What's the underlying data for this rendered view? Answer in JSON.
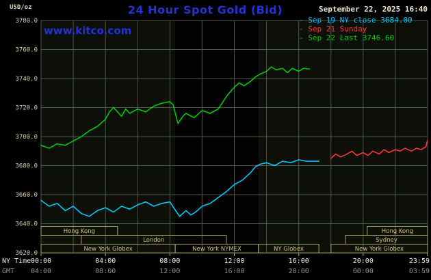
{
  "header": {
    "units_label": "USD/oz",
    "title": "24 Hour Spot Gold (Bid)",
    "datetime": "September 22, 2025 16:40",
    "watermark": "www.kitco.com",
    "legend_marker": "-",
    "legend": [
      {
        "label": "Sep 19 NY close 3684.00",
        "color": "#00c8ff"
      },
      {
        "label": "Sep 21 Sunday",
        "color": "#ff3333"
      },
      {
        "label": "Sep 22 Last 3746.60",
        "color": "#00cc00"
      }
    ]
  },
  "colors": {
    "title": "#2433d6",
    "watermark": "#2233dd",
    "datetime_text": "#e6e2cc",
    "plot_bg": "#0d0f09",
    "band": "#020202",
    "grid": "#4e5849",
    "axis_text": "#d8d2ac",
    "session": "#b3a45c",
    "session_text": "#cfc183",
    "ny_time_text": "#e8e8e8",
    "gmt_text": "#909090"
  },
  "x_axis": {
    "tick_hours": [
      0,
      4,
      8,
      12,
      16,
      20,
      23.983
    ],
    "rows": [
      {
        "name": "NY Time",
        "labels": [
          "00:00",
          "04:00",
          "08:00",
          "12:00",
          "16:00",
          "20:00",
          "23:59"
        ],
        "color": "#e8e8e8"
      },
      {
        "name": "GMT",
        "labels": [
          "04:00",
          "08:00",
          "12:00",
          "16:00",
          "20:00",
          "00:00",
          "03:59"
        ],
        "color": "#909090"
      }
    ]
  },
  "sessions": {
    "rows": [
      [
        {
          "label": "Hong Kong",
          "start": 0,
          "end": 4.75
        },
        {
          "label": "Hong Kong",
          "start": 20.25,
          "end": 24
        }
      ],
      [
        {
          "label": "London",
          "start": 2.5,
          "end": 11.5
        },
        {
          "label": "Sydney",
          "start": 18.9,
          "end": 24
        }
      ],
      [
        {
          "label": "New York Globex",
          "start": 0,
          "end": 8.33
        },
        {
          "label": "New York NYMEX",
          "start": 8.33,
          "end": 13.5
        },
        {
          "label": "NY Globex",
          "start": 13.5,
          "end": 17.25
        },
        {
          "label": "New York Globex",
          "start": 18,
          "end": 24
        }
      ]
    ]
  },
  "chart_data": {
    "type": "line",
    "title": "24 Hour Spot Gold (Bid)",
    "xlabel": "NY Time (hours)",
    "ylabel": "USD/oz",
    "xlim": [
      0,
      24
    ],
    "ylim": [
      3620,
      3780
    ],
    "grid": true,
    "legend_position": "top-right",
    "y_ticks": [
      3780,
      3760,
      3740,
      3720,
      3700,
      3680,
      3660,
      3640,
      3620
    ],
    "y_tick_labels": [
      "3780.0",
      "3760.0",
      "3740.0",
      "3720.0",
      "3700.0",
      "3680.0",
      "3660.0",
      "3640.0",
      "3620.0"
    ],
    "nymex_band_hours": [
      8.33,
      13.5
    ],
    "series": [
      {
        "id": "sep19",
        "name": "Sep 19 NY close",
        "close": 3684.0,
        "color": "#00c8ff",
        "x": [
          0,
          0.5,
          1,
          1.5,
          2,
          2.5,
          3,
          3.5,
          4,
          4.5,
          5,
          5.5,
          6,
          6.5,
          7,
          7.5,
          8,
          8.3,
          8.6,
          9,
          9.3,
          9.6,
          10,
          10.5,
          11,
          11.5,
          12,
          12.5,
          13,
          13.3,
          13.6,
          14,
          14.5,
          15,
          15.5,
          16,
          16.5,
          17,
          17.25
        ],
        "y": [
          3656,
          3652,
          3654,
          3649,
          3652,
          3647,
          3645,
          3649,
          3651,
          3648,
          3652,
          3650,
          3653,
          3655,
          3652,
          3654,
          3655,
          3650,
          3645,
          3649,
          3646,
          3648,
          3652,
          3654,
          3658,
          3662,
          3667,
          3670,
          3675,
          3679,
          3681,
          3682,
          3680,
          3683,
          3682,
          3684,
          3683,
          3683,
          3683
        ]
      },
      {
        "id": "sep21",
        "name": "Sep 21 Sunday",
        "color": "#ff3333",
        "x": [
          18,
          18.3,
          18.6,
          19,
          19.3,
          19.6,
          20,
          20.3,
          20.6,
          21,
          21.3,
          21.6,
          22,
          22.3,
          22.6,
          23,
          23.3,
          23.6,
          23.9,
          23.98
        ],
        "y": [
          3685,
          3688,
          3686,
          3688,
          3690,
          3687,
          3689,
          3687,
          3690,
          3688,
          3691,
          3689,
          3691,
          3690,
          3692,
          3690,
          3692,
          3691,
          3693,
          3697
        ]
      },
      {
        "id": "sep22",
        "name": "Sep 22",
        "last": 3746.6,
        "color": "#00cc00",
        "x": [
          0,
          0.5,
          1,
          1.5,
          2,
          2.5,
          3,
          3.5,
          4,
          4.25,
          4.5,
          5,
          5.25,
          5.5,
          6,
          6.5,
          7,
          7.5,
          8,
          8.2,
          8.5,
          8.8,
          9,
          9.5,
          10,
          10.5,
          11,
          11.3,
          11.6,
          12,
          12.3,
          12.6,
          13,
          13.3,
          13.6,
          14,
          14.3,
          14.6,
          15,
          15.3,
          15.6,
          16,
          16.3,
          16.67
        ],
        "y": [
          3694,
          3692,
          3695,
          3694,
          3697,
          3700,
          3704,
          3707,
          3712,
          3717,
          3720,
          3714,
          3719,
          3716,
          3719,
          3717,
          3721,
          3723,
          3724,
          3722,
          3709,
          3714,
          3716,
          3713,
          3718,
          3716,
          3719,
          3724,
          3729,
          3734,
          3737,
          3735,
          3738,
          3741,
          3743,
          3745,
          3748,
          3746,
          3747,
          3744,
          3747,
          3745,
          3747,
          3746.6
        ]
      }
    ]
  }
}
